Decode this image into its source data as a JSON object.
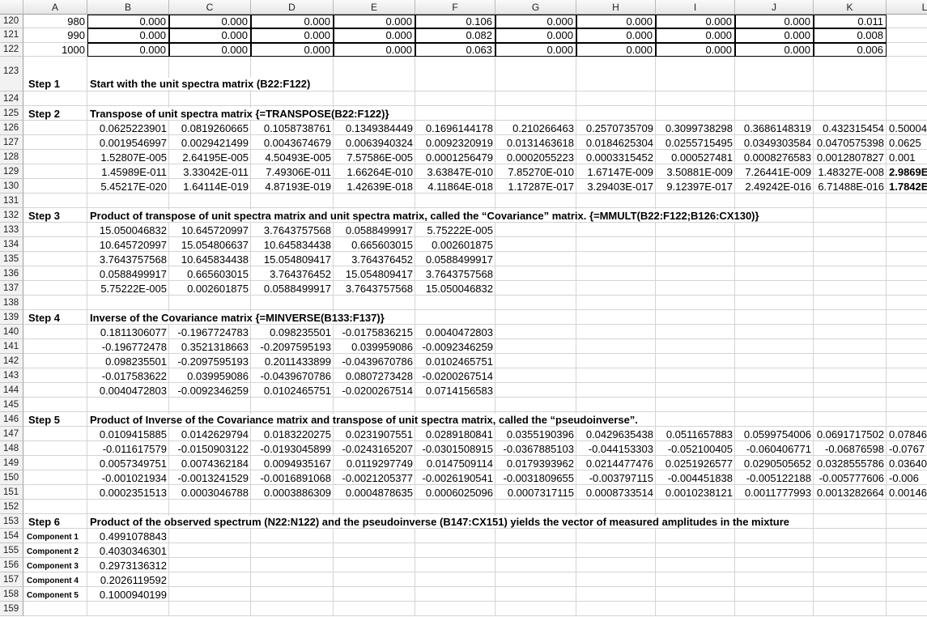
{
  "columns": [
    "A",
    "B",
    "C",
    "D",
    "E",
    "F",
    "G",
    "H",
    "I",
    "J",
    "K",
    "L"
  ],
  "rows": [
    {
      "number": "120",
      "cells": [
        "980",
        "0.000",
        "0.000",
        "0.000",
        "0.000",
        "0.106",
        "0.000",
        "0.000",
        "0.000",
        "0.000",
        "0.011"
      ]
    },
    {
      "number": "121",
      "cells": [
        "990",
        "0.000",
        "0.000",
        "0.000",
        "0.000",
        "0.082",
        "0.000",
        "0.000",
        "0.000",
        "0.000",
        "0.008"
      ]
    },
    {
      "number": "122",
      "cells": [
        "1000",
        "0.000",
        "0.000",
        "0.000",
        "0.000",
        "0.063",
        "0.000",
        "0.000",
        "0.000",
        "0.000",
        "0.006"
      ]
    },
    {
      "number": "123",
      "cells": [
        "Step 1",
        "Start with the unit spectra matrix (B22:F122)"
      ]
    },
    {
      "number": "124"
    },
    {
      "number": "125",
      "cells": [
        "Step 2",
        "Transpose of unit spectra matrix {=TRANSPOSE(B22:F122)}"
      ]
    },
    {
      "number": "126",
      "cells": [
        null,
        "0.0625223901",
        "0.0819260665",
        "0.1058738761",
        "0.1349384449",
        "0.1696144178",
        "0.210266463",
        "0.2570735709",
        "0.3099738298",
        "0.3686148319",
        "0.432315454",
        "0.50004"
      ]
    },
    {
      "number": "127",
      "cells": [
        null,
        "0.0019546997",
        "0.0029421499",
        "0.0043674679",
        "0.0063940324",
        "0.0092320919",
        "0.0131463618",
        "0.0184625304",
        "0.0255715495",
        "0.0349303584",
        "0.0470575398",
        "0.0625"
      ]
    },
    {
      "number": "128",
      "cells": [
        null,
        "1.52807E-005",
        "2.64195E-005",
        "4.50493E-005",
        "7.57586E-005",
        "0.0001256479",
        "0.0002055223",
        "0.0003315452",
        "0.000527481",
        "0.0008276583",
        "0.0012807827",
        "0.001"
      ]
    },
    {
      "number": "129",
      "cells": [
        null,
        "1.45989E-011",
        "3.33042E-011",
        "7.49306E-011",
        "1.66264E-010",
        "3.63847E-010",
        "7.85270E-010",
        "1.67147E-009",
        "3.50881E-009",
        "7.26441E-009",
        "1.48327E-008",
        "2.9869E"
      ]
    },
    {
      "number": "130",
      "cells": [
        null,
        "5.45217E-020",
        "1.64114E-019",
        "4.87193E-019",
        "1.42639E-018",
        "4.11864E-018",
        "1.17287E-017",
        "3.29403E-017",
        "9.12397E-017",
        "2.49242E-016",
        "6.71488E-016",
        "1.7842E"
      ]
    },
    {
      "number": "131"
    },
    {
      "number": "132",
      "cells": [
        "Step 3",
        "Product of transpose of unit spectra matrix and unit spectra matrix, called the “Covariance” matrix.  {=MMULT(B22:F122;B126:CX130)}"
      ]
    },
    {
      "number": "133",
      "cells": [
        null,
        "15.050046832",
        "10.645720997",
        "3.7643757568",
        "0.0588499917",
        "5.75222E-005"
      ]
    },
    {
      "number": "134",
      "cells": [
        null,
        "10.645720997",
        "15.054806637",
        "10.645834438",
        "0.665603015",
        "0.002601875"
      ]
    },
    {
      "number": "135",
      "cells": [
        null,
        "3.7643757568",
        "10.645834438",
        "15.054809417",
        "3.764376452",
        "0.0588499917"
      ]
    },
    {
      "number": "136",
      "cells": [
        null,
        "0.0588499917",
        "0.665603015",
        "3.764376452",
        "15.054809417",
        "3.7643757568"
      ]
    },
    {
      "number": "137",
      "cells": [
        null,
        "5.75222E-005",
        "0.002601875",
        "0.0588499917",
        "3.7643757568",
        "15.050046832"
      ]
    },
    {
      "number": "138"
    },
    {
      "number": "139",
      "cells": [
        "Step 4",
        "Inverse of the Covariance matrix {=MINVERSE(B133:F137)}"
      ]
    },
    {
      "number": "140",
      "cells": [
        null,
        "0.1811306077",
        "-0.1967724783",
        "0.098235501",
        "-0.0175836215",
        "0.0040472803"
      ]
    },
    {
      "number": "141",
      "cells": [
        null,
        "-0.196772478",
        "0.3521318663",
        "-0.2097595193",
        "0.039959086",
        "-0.0092346259"
      ]
    },
    {
      "number": "142",
      "cells": [
        null,
        "0.098235501",
        "-0.2097595193",
        "0.2011433899",
        "-0.0439670786",
        "0.0102465751"
      ]
    },
    {
      "number": "143",
      "cells": [
        null,
        "-0.017583622",
        "0.039959086",
        "-0.0439670786",
        "0.0807273428",
        "-0.0200267514"
      ]
    },
    {
      "number": "144",
      "cells": [
        null,
        "0.0040472803",
        "-0.0092346259",
        "0.0102465751",
        "-0.0200267514",
        "0.0714156583"
      ]
    },
    {
      "number": "145"
    },
    {
      "number": "146",
      "cells": [
        "Step 5",
        "Product of Inverse of the Covariance matrix and transpose of unit spectra matrix, called the “pseudoinverse”."
      ]
    },
    {
      "number": "147",
      "cells": [
        null,
        "0.0109415885",
        "0.0142629794",
        "0.0183220275",
        "0.0231907551",
        "0.0289180841",
        "0.0355190396",
        "0.0429635438",
        "0.0511657883",
        "0.0599754006",
        "0.0691717502",
        "0.07846"
      ]
    },
    {
      "number": "148",
      "cells": [
        null,
        "-0.011617579",
        "-0.0150903122",
        "-0.0193045899",
        "-0.0243165207",
        "-0.0301508915",
        "-0.0367885103",
        "-0.044153303",
        "-0.052100405",
        "-0.060406771",
        "-0.06876598",
        "-0.0767"
      ]
    },
    {
      "number": "149",
      "cells": [
        null,
        "0.0057349751",
        "0.0074362184",
        "0.0094935167",
        "0.0119297749",
        "0.0147509114",
        "0.0179393962",
        "0.0214477476",
        "0.0251926577",
        "0.0290505652",
        "0.0328555786",
        "0.03640"
      ]
    },
    {
      "number": "150",
      "cells": [
        null,
        "-0.001021934",
        "-0.0013241529",
        "-0.0016891068",
        "-0.0021205377",
        "-0.0026190541",
        "-0.0031809655",
        "-0.003797115",
        "-0.004451838",
        "-0.005122188",
        "-0.005777606",
        "-0.006"
      ]
    },
    {
      "number": "151",
      "cells": [
        null,
        "0.0002351513",
        "0.0003046788",
        "0.0003886309",
        "0.0004878635",
        "0.0006025096",
        "0.0007317115",
        "0.0008733514",
        "0.0010238121",
        "0.0011777993",
        "0.0013282664",
        "0.00146"
      ]
    },
    {
      "number": "152"
    },
    {
      "number": "153",
      "cells": [
        "Step 6",
        "Product of the observed spectrum  (N22:N122) and the pseudoinverse (B147:CX151) yields the vector of measured amplitudes in the mixture"
      ]
    },
    {
      "number": "154",
      "cells": [
        "Component 1",
        "0.4991078843"
      ]
    },
    {
      "number": "155",
      "cells": [
        "Component 2",
        "0.4030346301"
      ]
    },
    {
      "number": "156",
      "cells": [
        "Component 3",
        "0.2973136312"
      ]
    },
    {
      "number": "157",
      "cells": [
        "Component 4",
        "0.2026119592"
      ]
    },
    {
      "number": "158",
      "cells": [
        "Component 5",
        "0.1000940199"
      ]
    },
    {
      "number": "159"
    }
  ]
}
